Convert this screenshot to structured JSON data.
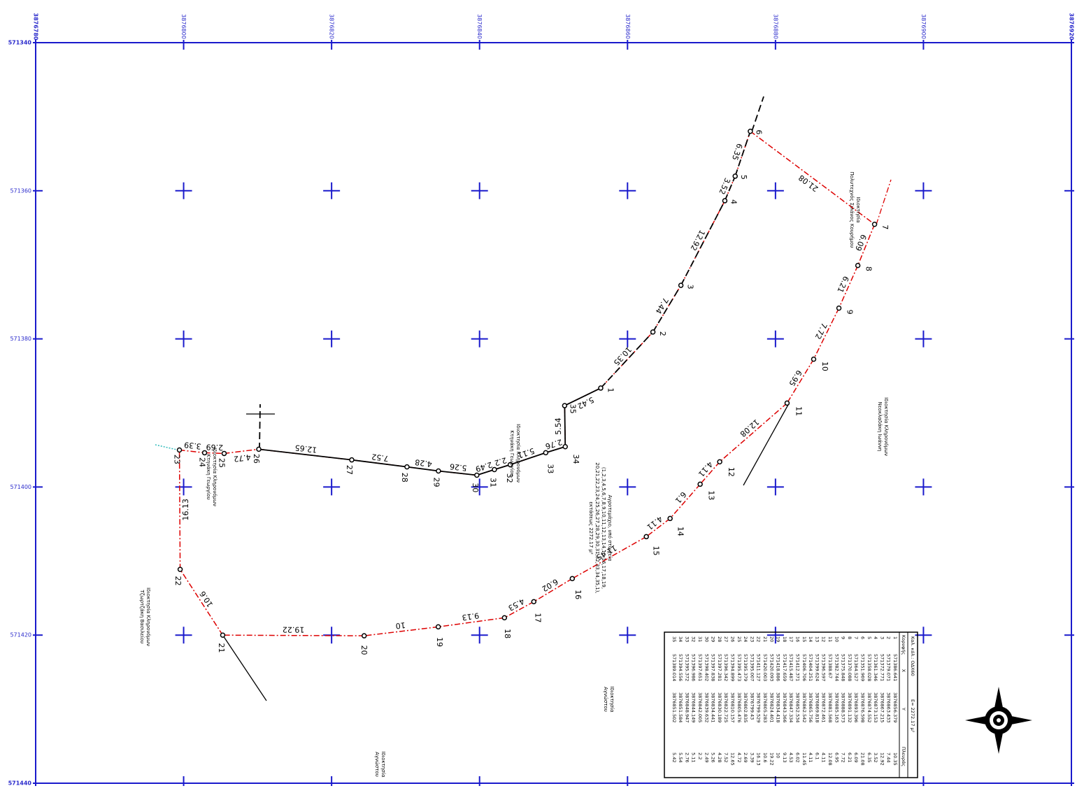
{
  "grid": {
    "eastings": [
      3876780,
      3876800,
      3876820,
      3876840,
      3876860,
      3876880,
      3876900,
      3876920
    ],
    "northings": [
      571340,
      571360,
      571380,
      571400,
      571420,
      571440
    ]
  },
  "points": [
    {
      "id": "1",
      "x": 571386.641,
      "y": 3876856.379,
      "side": 10.35
    },
    {
      "id": "2",
      "x": 571379.071,
      "y": 3876863.433,
      "side": 7.44
    },
    {
      "id": "3",
      "x": 571372.771,
      "y": 3876867.215,
      "side": 12.92
    },
    {
      "id": "4",
      "x": 571361.346,
      "y": 3876873.153,
      "side": 3.52
    },
    {
      "id": "5",
      "x": 571358.028,
      "y": 3876874.552,
      "side": 6.35
    },
    {
      "id": "6",
      "x": 571351.969,
      "y": 3876876.598,
      "side": 21.08
    },
    {
      "id": "7",
      "x": 571364.527,
      "y": 3876893.396,
      "side": 6.09
    },
    {
      "id": "8",
      "x": 571370.088,
      "y": 3876891.132,
      "side": 6.21
    },
    {
      "id": "9",
      "x": 571375.848,
      "y": 3876888.573,
      "side": 7.72
    },
    {
      "id": "10",
      "x": 571382.744,
      "y": 3876885.163,
      "side": 6.95
    },
    {
      "id": "11",
      "x": 571388.67,
      "y": 3876881.568,
      "side": 12.08
    },
    {
      "id": "12",
      "x": 571396.597,
      "y": 3876872.461,
      "side": 4.11
    },
    {
      "id": "13",
      "x": 571399.624,
      "y": 3876869.818,
      "side": 6.1
    },
    {
      "id": "14",
      "x": 571404.251,
      "y": 3876865.756,
      "side": 4.11
    },
    {
      "id": "15",
      "x": 571406.706,
      "y": 3876862.542,
      "side": 11.45
    },
    {
      "id": "16",
      "x": 571412.371,
      "y": 3876852.534,
      "side": 6.02
    },
    {
      "id": "17",
      "x": 571415.487,
      "y": 3876847.334,
      "side": 4.53
    },
    {
      "id": "18",
      "x": 571417.659,
      "y": 3876843.366,
      "side": 9.13
    },
    {
      "id": "19",
      "x": 571418.886,
      "y": 3876834.418,
      "side": 10
    },
    {
      "id": "20",
      "x": 571420.093,
      "y": 3876824.401,
      "side": 19.22
    },
    {
      "id": "21",
      "x": 571420.003,
      "y": 3876805.283,
      "side": 10.6
    },
    {
      "id": "22",
      "x": 571411.127,
      "y": 3876799.529,
      "side": 16.13
    },
    {
      "id": "23",
      "x": 571395.007,
      "y": 3876799.43,
      "side": 3.39
    },
    {
      "id": "24",
      "x": 571395.379,
      "y": 3876802.835,
      "side": 2.69
    },
    {
      "id": "25",
      "x": 571395.473,
      "y": 3876805.476,
      "side": 4.72
    },
    {
      "id": "26",
      "x": 571394.899,
      "y": 3876810.157,
      "side": 12.65
    },
    {
      "id": "27",
      "x": 571396.342,
      "y": 3876822.725,
      "side": 7.52
    },
    {
      "id": "28",
      "x": 571397.281,
      "y": 3876830.189,
      "side": 4.28
    },
    {
      "id": "29",
      "x": 571397.838,
      "y": 3876834.441,
      "side": 5.26
    },
    {
      "id": "30",
      "x": 571398.402,
      "y": 3876839.632,
      "side": 2.49
    },
    {
      "id": "31",
      "x": 571397.651,
      "y": 3876842.005,
      "side": 2.2
    },
    {
      "id": "32",
      "x": 571396.986,
      "y": 3876844.149,
      "side": 5.11
    },
    {
      "id": "33",
      "x": 571395.372,
      "y": 3876848.947,
      "side": 2.76
    },
    {
      "id": "34",
      "x": 571394.556,
      "y": 3876851.584,
      "side": 5.54
    },
    {
      "id": "35",
      "x": 571389.014,
      "y": 3876851.502,
      "side": 5.42
    }
  ],
  "table": {
    "title": "Καλ. κόλ.: ΟΔΧ60",
    "area": "Ε= 2272.17 μ²",
    "headers": [
      "Κορυφής",
      "X",
      "Y",
      "Πλευράς"
    ]
  },
  "owners": [
    {
      "lines": [
        "Ιδιοκτησία",
        "Πολυτεχνός Σιλάνος Κουρήμου"
      ]
    },
    {
      "lines": [
        "Ιδιοκτησία Κληρονόμων",
        "Νεοκλαδάκη Ιωάννη"
      ]
    },
    {
      "lines": [
        "Ιδιοκτησία Κληρονόμων",
        "Κτηνάκη Γεωργίου"
      ]
    },
    {
      "lines": [
        "Ιδιοκτησία Κληρονόμων",
        "Κτηνάκη Γεωργίου"
      ]
    },
    {
      "lines": [
        "Ιδιοκτησία Κληρονόμων",
        "Τζωρτζάκη Βασιλείου"
      ]
    },
    {
      "lines": [
        "Ιδιοκτησία",
        "Αγνώστου"
      ]
    },
    {
      "lines": [
        "Ιδιοκτησία",
        "Αγνώστου"
      ]
    }
  ],
  "annotation": {
    "lines": [
      "Αγροτεμάχιο, υπό στοιχεία",
      "(1,2,3,4,5,6,7,8,9,10,11,12,13,14,15,16,17,18,19,",
      "20,21,22,23,24,25,26,27,28,29,30,31,32,33,34,35,1),",
      "εκτάσεως 2272.17 μ²"
    ]
  }
}
